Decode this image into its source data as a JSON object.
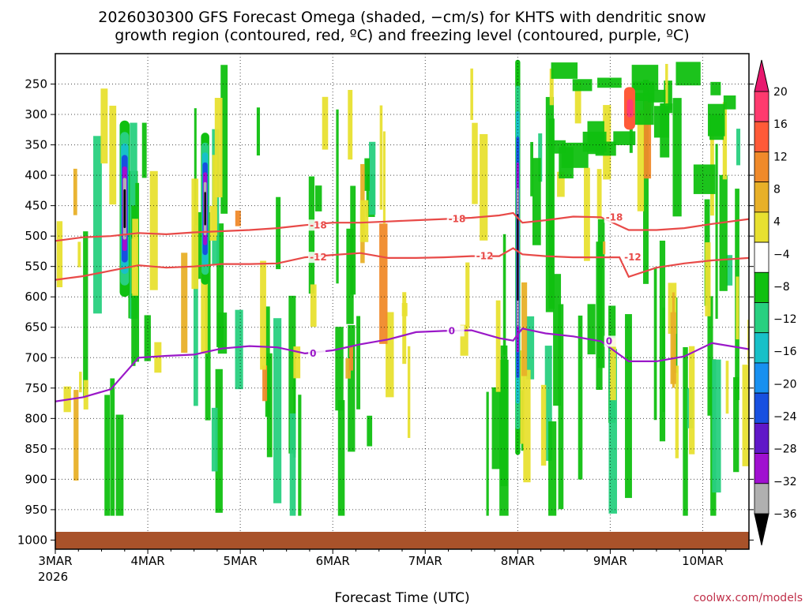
{
  "chart_data": {
    "type": "heatmap",
    "title_lines": [
      "2026030300 GFS Forecast Omega (shaded, −cm/s) for KHTS with dendritic snow",
      "growth region (contoured, red, ºC) and freezing level (contoured, purple, ºC)"
    ],
    "xlabel": "Forecast Time (UTC)",
    "ylabel": "",
    "x_ticks": [
      "3MAR",
      "4MAR",
      "5MAR",
      "6MAR",
      "7MAR",
      "8MAR",
      "9MAR",
      "10MAR"
    ],
    "x_year": "2026",
    "x_range_days": [
      0,
      7.5
    ],
    "y_ticks": [
      250,
      300,
      350,
      400,
      450,
      500,
      550,
      600,
      650,
      700,
      750,
      800,
      850,
      900,
      950,
      1000
    ],
    "y_range_hpa": [
      200,
      1015
    ],
    "grid": true,
    "colorbar": {
      "labels": [
        "20",
        "16",
        "12",
        "8",
        "4",
        "−4",
        "−8",
        "−12",
        "−16",
        "−20",
        "−24",
        "−28",
        "−32",
        "−36"
      ],
      "colors": [
        "#ff3a6e",
        "#ff5a38",
        "#f08a2a",
        "#e8b028",
        "#e8e030",
        "#ffffff",
        "#10c010",
        "#28d080",
        "#18c0c8",
        "#1890f0",
        "#1850e0",
        "#6018c8",
        "#a010d0",
        "#b0b0b0",
        "#000000"
      ],
      "top_arrow_color": "#e8186e",
      "bottom_arrow_color": "#000000"
    },
    "dgz_series": [
      {
        "level_c": -18,
        "label": "-18",
        "color": "#e84a48",
        "x_days": [
          0,
          0.3,
          0.6,
          0.9,
          1.2,
          1.5,
          1.8,
          2.1,
          2.4,
          2.7,
          3.0,
          3.3,
          3.6,
          3.9,
          4.2,
          4.5,
          4.8,
          4.95,
          5.05,
          5.3,
          5.6,
          5.9,
          6.2,
          6.5,
          6.8,
          7.1,
          7.5
        ],
        "p_hpa": [
          508,
          502,
          500,
          495,
          497,
          494,
          492,
          490,
          487,
          482,
          478,
          478,
          476,
          474,
          472,
          470,
          466,
          462,
          478,
          474,
          468,
          469,
          490,
          490,
          487,
          480,
          472
        ]
      },
      {
        "level_c": -12,
        "label": "-12",
        "color": "#e84a48",
        "x_days": [
          0,
          0.3,
          0.6,
          0.9,
          1.2,
          1.5,
          1.8,
          2.1,
          2.4,
          2.7,
          3.0,
          3.3,
          3.6,
          3.9,
          4.2,
          4.5,
          4.8,
          4.95,
          5.05,
          5.3,
          5.6,
          5.9,
          6.1,
          6.2,
          6.5,
          6.8,
          7.1,
          7.5
        ],
        "p_hpa": [
          572,
          566,
          557,
          548,
          552,
          550,
          546,
          546,
          545,
          535,
          531,
          528,
          536,
          536,
          535,
          533,
          533,
          520,
          530,
          533,
          535,
          535,
          535,
          567,
          552,
          545,
          540,
          536
        ]
      }
    ],
    "freezing_level": {
      "level_c": 0,
      "label": "0",
      "color": "#9a18c8",
      "x_days": [
        0,
        0.3,
        0.6,
        0.9,
        1.2,
        1.5,
        1.8,
        2.1,
        2.4,
        2.7,
        3.0,
        3.3,
        3.6,
        3.9,
        4.2,
        4.5,
        4.8,
        4.95,
        5.05,
        5.3,
        5.6,
        5.9,
        6.2,
        6.5,
        6.8,
        7.1,
        7.5
      ],
      "p_hpa": [
        772,
        765,
        752,
        700,
        697,
        695,
        685,
        681,
        683,
        693,
        688,
        678,
        670,
        658,
        656,
        655,
        668,
        672,
        652,
        660,
        665,
        673,
        706,
        706,
        698,
        676,
        686
      ]
    },
    "omega_features": [
      {
        "x_day": 0.75,
        "width_days": 0.06,
        "p_top": 310,
        "p_bot": 600,
        "peak": -36
      },
      {
        "x_day": 1.62,
        "width_days": 0.05,
        "p_top": 330,
        "p_bot": 580,
        "peak": -36
      },
      {
        "x_day": 5.0,
        "width_days": 0.03,
        "p_top": 210,
        "p_bot": 860,
        "peak": -36
      }
    ]
  },
  "credit": "coolwx.com/models"
}
